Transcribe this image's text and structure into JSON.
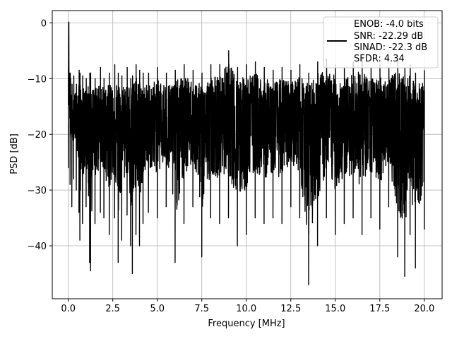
{
  "chart_data": {
    "type": "line",
    "xlabel": "Frequency [MHz]",
    "ylabel": "PSD [dB]",
    "xlim": [
      -0.9,
      21.0
    ],
    "ylim": [
      -49.5,
      2.2
    ],
    "xticks": [
      0.0,
      2.5,
      5.0,
      7.5,
      10.0,
      12.5,
      15.0,
      17.5,
      20.0
    ],
    "xtick_labels": [
      "0.0",
      "2.5",
      "5.0",
      "7.5",
      "10.0",
      "12.5",
      "15.0",
      "17.5",
      "20.0"
    ],
    "yticks": [
      0,
      -10,
      -20,
      -30,
      -40
    ],
    "ytick_labels": [
      "0",
      "−10",
      "−20",
      "−30",
      "−40"
    ],
    "grid": true,
    "legend_placement": "top-right",
    "legend_entries": [
      "ENOB: -4.0 bits",
      "SNR: -22.29 dB",
      "SINAD: -22.3 dB",
      "SFDR: 4.34"
    ],
    "series": [
      {
        "color": "#000000",
        "x_start": 0.0,
        "x_end": 20.0,
        "x": [
          0.0,
          0.02,
          0.05,
          0.1,
          0.12,
          0.2,
          0.3,
          0.45,
          0.6,
          0.65,
          0.8,
          1.0,
          1.2,
          1.25,
          1.5,
          1.8,
          2.0,
          2.3,
          2.6,
          2.8,
          3.0,
          3.3,
          3.5,
          3.6,
          3.8,
          4.0,
          4.2,
          4.5,
          5.0,
          5.5,
          6.0,
          6.5,
          7.0,
          7.5,
          8.0,
          8.5,
          9.0,
          9.5,
          10.0,
          10.5,
          11.0,
          11.5,
          12.0,
          12.5,
          13.0,
          13.5,
          14.0,
          14.5,
          15.0,
          15.5,
          16.0,
          16.5,
          17.0,
          17.5,
          18.0,
          18.5,
          18.9,
          19.2,
          19.5,
          20.0
        ],
        "y": [
          -26.0,
          0.0,
          -12.5,
          -29.0,
          -20.0,
          -33.0,
          -28.0,
          -30.0,
          -34.0,
          -39.0,
          -36.0,
          -33.0,
          -43.0,
          -44.5,
          -36.0,
          -34.0,
          -35.0,
          -38.0,
          -35.0,
          -43.0,
          -39.0,
          -34.5,
          -40.0,
          -45.0,
          -38.0,
          -40.0,
          -36.0,
          -34.0,
          -35.0,
          -33.0,
          -43.0,
          -36.0,
          -33.0,
          -42.0,
          -35.0,
          -36.0,
          -35.0,
          -40.0,
          -38.0,
          -35.0,
          -36.0,
          -35.0,
          -36.0,
          -33.0,
          -35.0,
          -47.0,
          -40.0,
          -35.0,
          -38.0,
          -36.0,
          -35.0,
          -38.0,
          -35.0,
          -37.0,
          -33.0,
          -42.0,
          -45.5,
          -38.0,
          -44.0,
          -37.0
        ],
        "upper_envelope": [
          -12.0,
          0.0,
          -9.0,
          -9.0,
          -10.0,
          -11.0,
          -9.5,
          -11.0,
          -8.5,
          -9.0,
          -9.5,
          -10.0,
          -9.0,
          -9.0,
          -10.0,
          -8.0,
          -10.0,
          -9.0,
          -7.5,
          -9.0,
          -9.5,
          -8.0,
          -10.0,
          -9.5,
          -7.5,
          -8.5,
          -9.0,
          -9.0,
          -8.0,
          -9.0,
          -8.5,
          -7.5,
          -8.5,
          -9.0,
          -7.5,
          -7.5,
          -5.0,
          -8.0,
          -7.5,
          -7.0,
          -8.0,
          -8.5,
          -8.0,
          -8.5,
          -7.5,
          -9.0,
          -7.0,
          -6.5,
          -7.5,
          -8.0,
          -7.0,
          -6.5,
          -8.0,
          -7.5,
          -8.0,
          -6.5,
          -8.0,
          -7.5,
          -9.0,
          -8.5
        ]
      }
    ]
  }
}
